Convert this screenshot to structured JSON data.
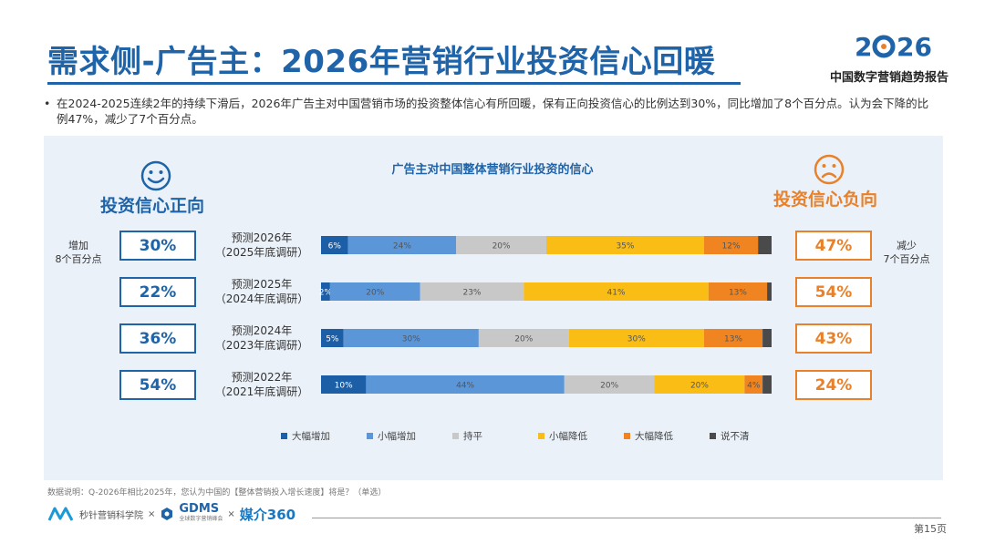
{
  "header": {
    "title": "需求侧-广告主：2026年营销行业投资信心回暖",
    "brand_year": "2026",
    "brand_subtitle": "中国数字营销趋势报告",
    "accent_blue": "#1f63a8",
    "accent_orange": "#e8812a"
  },
  "bullet": "在2024-2025连续2年的持续下滑后，2026年广告主对中国营销市场的投资整体信心有所回暖，保有正向投资信心的比例达到30%，同比增加了8个百分点。认为会下降的比例47%，减少了7个百分点。",
  "positive": {
    "title": "投资信心正向",
    "icon": "smiley-face-icon",
    "note_line1": "增加",
    "note_line2": "8个百分点",
    "values": [
      "30%",
      "22%",
      "36%",
      "54%"
    ]
  },
  "negative": {
    "title": "投资信心负向",
    "icon": "sad-face-icon",
    "note_line1": "减少",
    "note_line2": "7个百分点",
    "values": [
      "47%",
      "54%",
      "43%",
      "24%"
    ]
  },
  "rows": [
    {
      "line1": "预测2026年",
      "line2": "（2025年底调研）"
    },
    {
      "line1": "预测2025年",
      "line2": "（2024年底调研）"
    },
    {
      "line1": "预测2024年",
      "line2": "（2023年底调研）"
    },
    {
      "line1": "预测2022年",
      "line2": "（2021年底调研）"
    }
  ],
  "chart_data": {
    "type": "bar",
    "orientation": "horizontal",
    "stacked": true,
    "title": "广告主对中国整体营销行业投资的信心",
    "categories": [
      "预测2026年（2025年底调研）",
      "预测2025年（2024年底调研）",
      "预测2024年（2023年底调研）",
      "预测2022年（2021年底调研）"
    ],
    "series": [
      {
        "name": "大幅增加",
        "color": "#1c5fa6",
        "values": [
          6,
          2,
          5,
          10
        ]
      },
      {
        "name": "小幅增加",
        "color": "#5b96d8",
        "values": [
          24,
          20,
          30,
          44
        ]
      },
      {
        "name": "持平",
        "color": "#c8c8c8",
        "values": [
          20,
          23,
          20,
          20
        ]
      },
      {
        "name": "小幅降低",
        "color": "#f9bd16",
        "values": [
          35,
          41,
          30,
          20
        ]
      },
      {
        "name": "大幅降低",
        "color": "#f08421",
        "values": [
          12,
          13,
          13,
          4
        ]
      },
      {
        "name": "说不清",
        "color": "#4a4a4a",
        "values": [
          3,
          1,
          2,
          2
        ]
      }
    ],
    "labels": [
      [
        "6%",
        "24%",
        "20%",
        "35%",
        "12%",
        ""
      ],
      [
        "2%",
        "20%",
        "23%",
        "41%",
        "13%",
        ""
      ],
      [
        "5%",
        "30%",
        "20%",
        "30%",
        "13%",
        ""
      ],
      [
        "10%",
        "44%",
        "20%",
        "20%",
        "4%",
        ""
      ]
    ],
    "xlim": [
      0,
      100
    ],
    "legend": "bottom"
  },
  "footer": {
    "footnote": "数据说明：Q-2026年相比2025年，您认为中国的【整体营销投入增长速度】将是？（单选）",
    "logo1": "秒针营销科学院",
    "sep": "×",
    "logo2": "GDMS",
    "logo2_sub": "全球数字营销峰会",
    "logo3": "媒介360",
    "page": "第15页"
  }
}
